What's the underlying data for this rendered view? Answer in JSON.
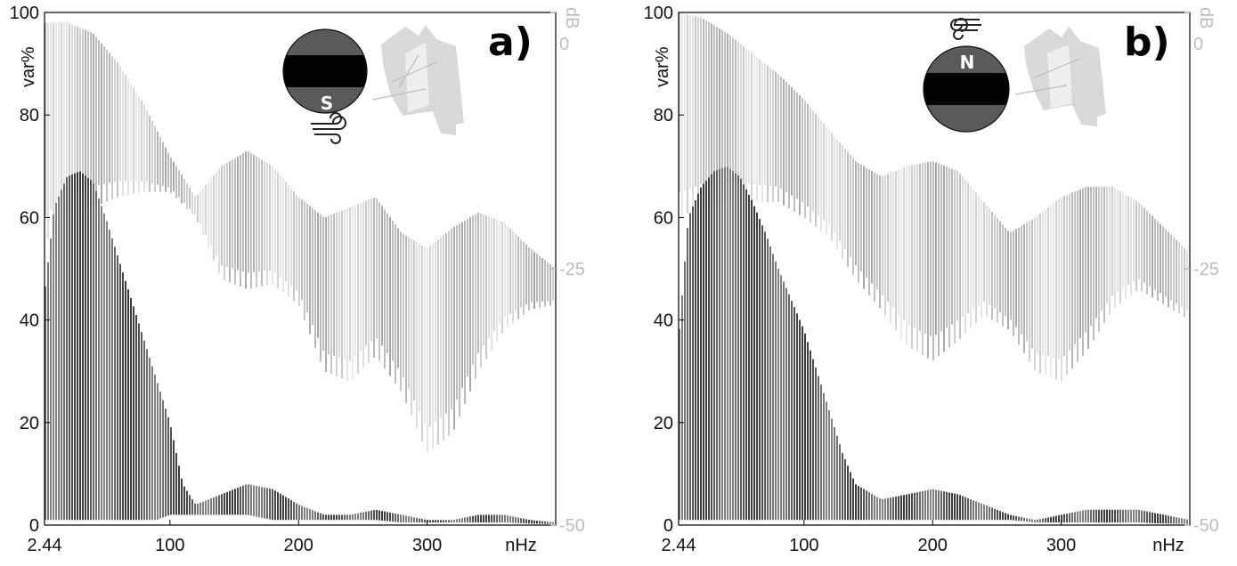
{
  "chart_data": [
    {
      "type": "line",
      "panel_label": "a)",
      "badge_letter": "S",
      "badge_position": "bottom",
      "xunit": "nHz",
      "ylabel": "var%",
      "ylabel_right": "dB",
      "xlim": [
        2.44,
        400
      ],
      "ylim": [
        0,
        100
      ],
      "x_ticks": [
        "2.44",
        "100",
        "200",
        "300"
      ],
      "y_ticks": [
        "0",
        "20",
        "40",
        "60",
        "80",
        "100"
      ],
      "right_ticks": [
        "0",
        "-25",
        "-50"
      ],
      "series": [
        {
          "role": "upper-envelope",
          "x": [
            2.44,
            20,
            40,
            60,
            80,
            100,
            120,
            140,
            160,
            180,
            200,
            220,
            240,
            260,
            280,
            300,
            320,
            340,
            360,
            380,
            400
          ],
          "top": [
            98,
            98,
            96,
            90,
            82,
            72,
            64,
            70,
            73,
            70,
            64,
            60,
            62,
            64,
            57,
            54,
            58,
            61,
            59,
            54,
            50
          ],
          "bottom": [
            55,
            60,
            62,
            64,
            65,
            65,
            60,
            48,
            46,
            47,
            43,
            30,
            28,
            33,
            26,
            14,
            18,
            30,
            38,
            42,
            43
          ]
        },
        {
          "role": "lower-envelope",
          "x": [
            2.44,
            10,
            20,
            30,
            40,
            50,
            60,
            70,
            80,
            90,
            100,
            110,
            120,
            140,
            160,
            180,
            200,
            220,
            240,
            260,
            280,
            300,
            320,
            340,
            360,
            380,
            400
          ],
          "top": [
            45,
            62,
            68,
            69,
            67,
            60,
            52,
            44,
            36,
            28,
            20,
            8,
            4,
            6,
            8,
            7,
            4,
            2,
            2,
            3,
            2,
            1,
            1,
            2,
            2,
            1,
            0.5
          ],
          "bottom": [
            1,
            1,
            1,
            1,
            1,
            1,
            1,
            1,
            1,
            1,
            2,
            2,
            2,
            2,
            2,
            1,
            1,
            1,
            1,
            1,
            0.5,
            0.5,
            0.5,
            0.5,
            0.5,
            0.3,
            0.2
          ]
        }
      ]
    },
    {
      "type": "line",
      "panel_label": "b)",
      "badge_letter": "N",
      "badge_position": "top",
      "xunit": "nHz",
      "ylabel": "var%",
      "ylabel_right": "dB",
      "xlim": [
        2.44,
        400
      ],
      "ylim": [
        0,
        100
      ],
      "x_ticks": [
        "2.44",
        "100",
        "200",
        "300"
      ],
      "y_ticks": [
        "0",
        "20",
        "40",
        "60",
        "80",
        "100"
      ],
      "right_ticks": [
        "0",
        "-25",
        "-50"
      ],
      "series": [
        {
          "role": "upper-envelope",
          "x": [
            2.44,
            20,
            40,
            60,
            80,
            100,
            120,
            140,
            160,
            180,
            200,
            220,
            240,
            260,
            280,
            300,
            320,
            340,
            360,
            380,
            400
          ],
          "top": [
            100,
            99,
            96,
            92,
            88,
            83,
            77,
            71,
            68,
            70,
            71,
            69,
            63,
            57,
            60,
            64,
            66,
            66,
            63,
            58,
            53
          ],
          "bottom": [
            60,
            62,
            63,
            63,
            63,
            60,
            56,
            48,
            42,
            35,
            32,
            36,
            41,
            38,
            30,
            28,
            34,
            42,
            46,
            43,
            40
          ]
        },
        {
          "role": "lower-envelope",
          "x": [
            2.44,
            10,
            20,
            30,
            40,
            50,
            60,
            70,
            80,
            90,
            100,
            110,
            120,
            130,
            140,
            160,
            180,
            200,
            220,
            240,
            260,
            280,
            300,
            320,
            340,
            360,
            380,
            400
          ],
          "top": [
            36,
            60,
            66,
            69,
            70,
            68,
            63,
            57,
            50,
            44,
            38,
            30,
            22,
            14,
            8,
            5,
            6,
            7,
            6,
            4,
            2,
            1,
            2,
            3,
            3,
            3,
            2,
            1
          ],
          "bottom": [
            1,
            1,
            1,
            1,
            1,
            1,
            1,
            1,
            1,
            1,
            1,
            1,
            1,
            1,
            1,
            1,
            1,
            1,
            1,
            1,
            1,
            0.5,
            0.5,
            0.5,
            0.5,
            0.5,
            0.3,
            0.2
          ]
        }
      ]
    }
  ]
}
